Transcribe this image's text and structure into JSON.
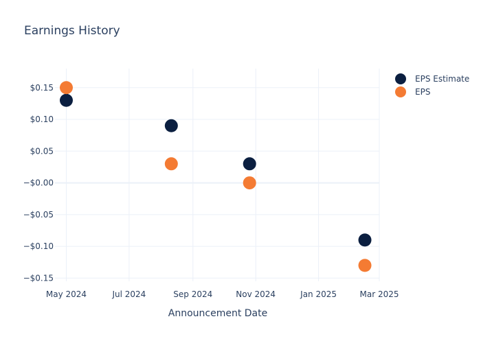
{
  "chart_data": {
    "type": "scatter",
    "title": "Earnings History",
    "xlabel": "Announcement Date",
    "ylabel": "",
    "x_tick_labels": [
      "May 2024",
      "Jul 2024",
      "Sep 2024",
      "Nov 2024",
      "Jan 2025",
      "Mar 2025"
    ],
    "x_ticks": [
      "2024-05-01",
      "2024-07-01",
      "2024-09-01",
      "2024-11-01",
      "2025-01-01",
      "2025-03-01"
    ],
    "xlim": [
      "2024-04-20",
      "2025-03-01"
    ],
    "y_tick_labels": [
      "$0.15",
      "$0.10",
      "$0.05",
      "−$0.00",
      "−$0.05",
      "−$0.10",
      "−$0.15"
    ],
    "y_ticks": [
      0.15,
      0.1,
      0.05,
      0.0,
      -0.05,
      -0.1,
      -0.15
    ],
    "ylim": [
      -0.155,
      0.18
    ],
    "grid": true,
    "legend_position": "top-right",
    "series": [
      {
        "name": "EPS Estimate",
        "color": "#0b1f40",
        "x": [
          "2024-05-01",
          "2024-08-11",
          "2024-10-26",
          "2025-02-15"
        ],
        "y": [
          0.13,
          0.09,
          0.03,
          -0.09
        ]
      },
      {
        "name": "EPS",
        "color": "#f47b33",
        "x": [
          "2024-05-01",
          "2024-08-11",
          "2024-10-26",
          "2025-02-15"
        ],
        "y": [
          0.15,
          0.03,
          0.0,
          -0.13
        ]
      }
    ]
  }
}
